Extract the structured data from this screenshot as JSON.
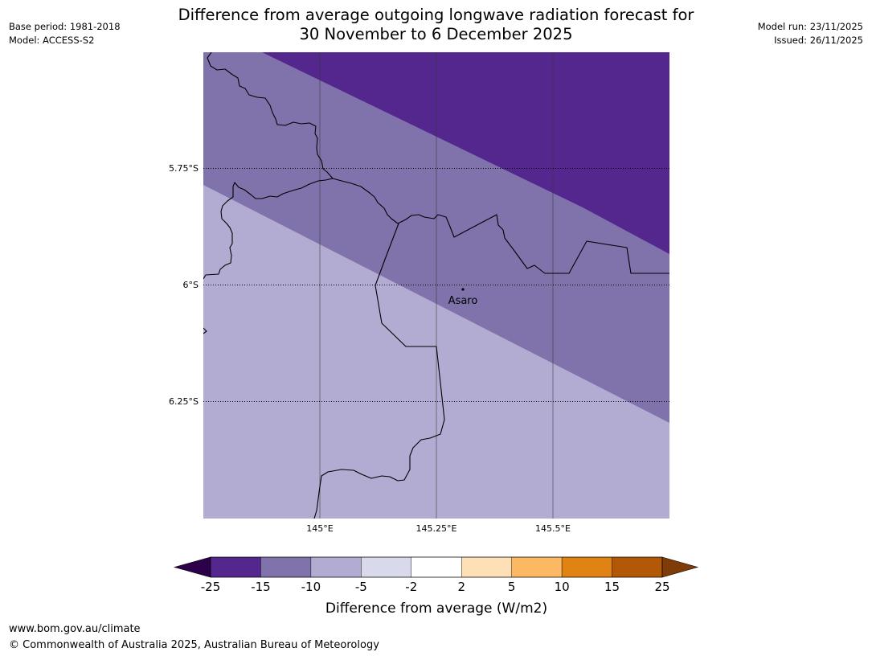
{
  "title": {
    "line1": "Difference from average outgoing longwave radiation forecast for",
    "line2": "30 November to 6 December 2025"
  },
  "meta": {
    "base_period": "Base period: 1981-2018",
    "model": "Model: ACCESS-S2",
    "model_run": "Model run: 23/11/2025",
    "issued": "Issued: 26/11/2025"
  },
  "map": {
    "place_label": "Asaro",
    "lat_ticks": [
      "5.75°S",
      "6°S",
      "6.25°S"
    ],
    "lon_ticks": [
      "145°E",
      "145.25°E",
      "145.5°E"
    ]
  },
  "legend": {
    "label": "Difference from average (W/m2)",
    "ticks": [
      "-25",
      "-15",
      "-10",
      "-5",
      "-2",
      "2",
      "5",
      "10",
      "15",
      "25"
    ],
    "colors": [
      "#54278f",
      "#8073ac",
      "#b2abd2",
      "#d8daeb",
      "#ffffff",
      "#fee0b6",
      "#fdb863",
      "#e08214",
      "#b35806"
    ],
    "low_extend_color": "#2d004b",
    "high_extend_color": "#7f3b08"
  },
  "footer": {
    "url": "www.bom.gov.au/climate",
    "copyright": "© Commonwealth of Australia 2025, Australian Bureau of Meteorology"
  }
}
